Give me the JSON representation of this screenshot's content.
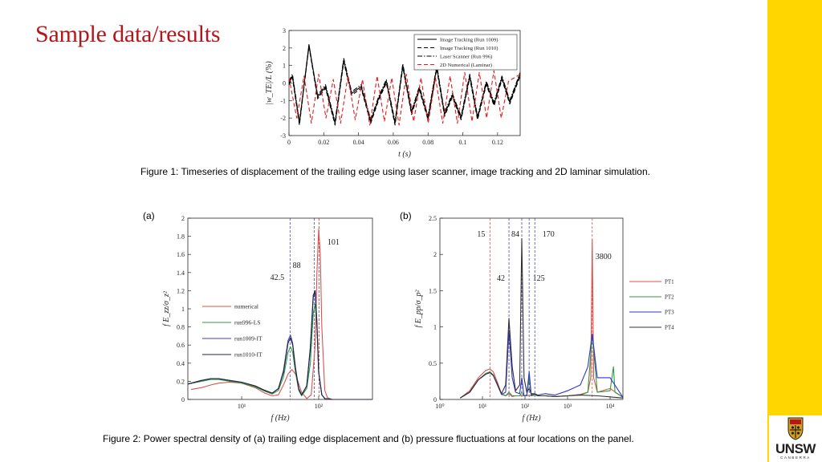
{
  "slide": {
    "title": "Sample data/results",
    "caption1": "Figure 1: Timeseries of displacement of the trailing edge using laser scanner, image tracking and 2D laminar simulation.",
    "caption2": "Figure 2: Power spectral density of (a) trailing edge displacement and (b) pressure fluctuations at four locations on the panel.",
    "panel_a": "(a)",
    "panel_b": "(b)",
    "logo": {
      "main": "UNSW",
      "sub": "CANBERRA"
    }
  },
  "chart_data": [
    {
      "type": "line",
      "xlabel": "t (s)",
      "ylabel": "|w_TE|/L (%)",
      "xlim": [
        0,
        0.133
      ],
      "ylim": [
        -3,
        3
      ],
      "xticks": [
        0,
        0.02,
        0.04,
        0.06,
        0.08,
        0.1,
        0.12
      ],
      "xtick_labels": [
        "0",
        "0.02",
        "0.04",
        "0.06",
        "0.08",
        "0.1",
        "0.12"
      ],
      "yticks": [
        -3,
        -2,
        -1,
        0,
        1,
        2,
        3
      ],
      "grid": false,
      "legend_position": "top-right",
      "legend_entries": [
        "Image Tracking (Run 1009)",
        "Image Tracking (Run 1010)",
        "Laser Scanner (Run 996)",
        "2D Numerical (Laminar)"
      ],
      "series": [
        {
          "name": "Image Tracking (Run 1009)",
          "color": "#000000",
          "style": "solid",
          "x": [
            0,
            0.002,
            0.006,
            0.0115,
            0.0165,
            0.021,
            0.0265,
            0.0315,
            0.036,
            0.0415,
            0.047,
            0.0515,
            0.056,
            0.061,
            0.0655,
            0.0705,
            0.075,
            0.08,
            0.085,
            0.0895,
            0.094,
            0.099,
            0.104,
            0.1085,
            0.1135,
            0.118,
            0.1225,
            0.127,
            0.133
          ],
          "y": [
            0,
            0.4,
            -2.3,
            2.2,
            -0.8,
            -0.2,
            -2.3,
            1.3,
            -0.6,
            -0.2,
            -2.2,
            -0.9,
            0.1,
            -2.3,
            1.0,
            -1.7,
            -0.3,
            -2.0,
            0.9,
            -1.8,
            -0.7,
            -2.0,
            0.4,
            -2.0,
            0.0,
            -1.2,
            0.3,
            -1.1,
            0.5
          ]
        },
        {
          "name": "Image Tracking (Run 1010)",
          "color": "#000000",
          "style": "dashed",
          "x": [
            0,
            0.002,
            0.006,
            0.0115,
            0.0165,
            0.021,
            0.0265,
            0.0315,
            0.036,
            0.0415,
            0.047,
            0.0515,
            0.056,
            0.061,
            0.0655,
            0.0705,
            0.075,
            0.08,
            0.085,
            0.0895,
            0.094,
            0.099,
            0.104,
            0.1085,
            0.1135,
            0.118,
            0.1225,
            0.127,
            0.133
          ],
          "y": [
            -0.1,
            0.3,
            -2.4,
            2.1,
            -0.9,
            -0.3,
            -2.4,
            1.2,
            -0.7,
            -0.3,
            -2.3,
            -1.0,
            0.0,
            -2.4,
            0.9,
            -1.8,
            -0.4,
            -2.1,
            0.8,
            -1.9,
            -0.8,
            -2.1,
            0.3,
            -2.1,
            -0.1,
            -1.3,
            0.2,
            -1.2,
            0.4
          ]
        },
        {
          "name": "Laser Scanner (Run 996)",
          "color": "#000000",
          "style": "dash-dot",
          "x": [
            0,
            0.002,
            0.006,
            0.0115,
            0.0165,
            0.021,
            0.0265,
            0.0315,
            0.036,
            0.0415,
            0.047,
            0.0515,
            0.056,
            0.061,
            0.0655,
            0.0705,
            0.075,
            0.08,
            0.085,
            0.0895,
            0.094,
            0.099,
            0.104,
            0.1085,
            0.1135,
            0.118,
            0.1225,
            0.127,
            0.133
          ],
          "y": [
            0.1,
            0.5,
            -2.2,
            2.1,
            -0.7,
            -0.1,
            -2.2,
            1.4,
            -0.5,
            -0.1,
            -2.1,
            -0.8,
            0.2,
            -2.2,
            1.1,
            -1.6,
            -0.2,
            -1.9,
            1.0,
            -1.7,
            -0.6,
            -1.9,
            0.5,
            -1.9,
            0.1,
            -1.1,
            0.4,
            -1.0,
            0.6
          ]
        },
        {
          "name": "2D Numerical (Laminar)",
          "color": "#e41a1c",
          "style": "dashed",
          "x": [
            0,
            0.0045,
            0.0087,
            0.0129,
            0.0171,
            0.0213,
            0.0255,
            0.0297,
            0.0339,
            0.0381,
            0.0423,
            0.0465,
            0.0507,
            0.0549,
            0.0591,
            0.0633,
            0.0675,
            0.0717,
            0.0759,
            0.0801,
            0.0843,
            0.0885,
            0.0927,
            0.0969,
            0.1011,
            0.1053,
            0.1095,
            0.1137,
            0.1179,
            0.1221,
            0.1263,
            0.133
          ],
          "y": [
            0.3,
            -2.0,
            0.4,
            -2.3,
            0.5,
            -2.0,
            0.2,
            -2.3,
            0.4,
            -2.1,
            0.2,
            -2.4,
            0.4,
            -2.2,
            0.3,
            -2.4,
            0.5,
            -2.2,
            0.3,
            -2.3,
            0.3,
            -2.3,
            0.4,
            -2.3,
            0.6,
            -2.2,
            0.6,
            -2.0,
            0.7,
            -2.0,
            0.1,
            0.5
          ]
        }
      ]
    },
    {
      "type": "line",
      "xscale": "log",
      "xlabel": "f (Hz)",
      "ylabel": "f E_zz/σ_z²",
      "xlim": [
        2,
        500
      ],
      "ylim": [
        0,
        2
      ],
      "xticks": [
        10,
        100
      ],
      "xtick_labels": [
        "10¹",
        "10²"
      ],
      "yticks": [
        0,
        0.2,
        0.4,
        0.6,
        0.8,
        1,
        1.2,
        1.4,
        1.6,
        1.8,
        2
      ],
      "grid": false,
      "legend_position": "lower-left",
      "legend_entries": [
        "numerical",
        "run996-LS",
        "run1009-IT",
        "run1010-IT"
      ],
      "vlines": [
        {
          "x": 42.5,
          "label": "42.5",
          "color": "#4a4aa8"
        },
        {
          "x": 88,
          "label": "88",
          "color": "#4a4aa8"
        },
        {
          "x": 101,
          "label": "101",
          "color": "#cc3333"
        }
      ],
      "series": [
        {
          "name": "numerical",
          "color": "#d9534f",
          "x": [
            2.2,
            3,
            4,
            5,
            7,
            10,
            15,
            20,
            25,
            30,
            35,
            40,
            45,
            50,
            60,
            70,
            80,
            90,
            95,
            100,
            105,
            110,
            120,
            130,
            150,
            200,
            300,
            500
          ],
          "y": [
            0.11,
            0.13,
            0.16,
            0.18,
            0.19,
            0.18,
            0.13,
            0.07,
            0.04,
            0.05,
            0.16,
            0.28,
            0.33,
            0.28,
            0.08,
            0.01,
            0.05,
            0.6,
            1.4,
            1.88,
            1.6,
            0.8,
            0.1,
            0.02,
            0,
            0,
            0,
            0
          ]
        },
        {
          "name": "run996-LS",
          "color": "#2e9a3c",
          "x": [
            2,
            3,
            4,
            5,
            7,
            10,
            15,
            20,
            25,
            30,
            35,
            40,
            43,
            46,
            50,
            55,
            60,
            70,
            78,
            85,
            90,
            95,
            100,
            110,
            120,
            150,
            200,
            300,
            500
          ],
          "y": [
            0.17,
            0.2,
            0.22,
            0.22,
            0.2,
            0.18,
            0.14,
            0.09,
            0.06,
            0.1,
            0.25,
            0.52,
            0.58,
            0.52,
            0.3,
            0.1,
            0.04,
            0.12,
            0.4,
            0.95,
            1.05,
            0.8,
            0.3,
            0.05,
            0.01,
            0,
            0,
            0,
            0
          ]
        },
        {
          "name": "run1009-IT",
          "color": "#4040c0",
          "x": [
            2,
            3,
            4,
            5,
            7,
            10,
            15,
            20,
            25,
            30,
            35,
            40,
            43,
            46,
            50,
            55,
            60,
            70,
            78,
            85,
            90,
            95,
            100,
            110,
            120,
            150,
            200,
            300,
            500
          ],
          "y": [
            0.17,
            0.21,
            0.23,
            0.23,
            0.21,
            0.19,
            0.15,
            0.1,
            0.07,
            0.12,
            0.32,
            0.65,
            0.71,
            0.62,
            0.35,
            0.12,
            0.05,
            0.15,
            0.55,
            1.12,
            1.18,
            0.85,
            0.3,
            0.05,
            0.01,
            0,
            0,
            0,
            0
          ]
        },
        {
          "name": "run1010-IT",
          "color": "#222244",
          "x": [
            2,
            3,
            4,
            5,
            7,
            10,
            15,
            20,
            25,
            30,
            35,
            40,
            43,
            46,
            50,
            55,
            60,
            70,
            78,
            85,
            90,
            95,
            100,
            110,
            120,
            150,
            200,
            300,
            500
          ],
          "y": [
            0.17,
            0.21,
            0.23,
            0.23,
            0.21,
            0.19,
            0.15,
            0.1,
            0.07,
            0.12,
            0.3,
            0.62,
            0.68,
            0.6,
            0.34,
            0.12,
            0.05,
            0.15,
            0.58,
            1.15,
            1.2,
            0.85,
            0.3,
            0.05,
            0.01,
            0,
            0,
            0,
            0
          ]
        }
      ]
    },
    {
      "type": "line",
      "xscale": "log",
      "xlabel": "f (Hz)",
      "ylabel": "f E_pp/σ_p²",
      "xlim": [
        1,
        20000
      ],
      "ylim": [
        0,
        2.5
      ],
      "xticks": [
        1,
        10,
        100,
        1000,
        10000
      ],
      "xtick_labels": [
        "10⁰",
        "10¹",
        "10²",
        "10³",
        "10⁴"
      ],
      "yticks": [
        0,
        0.5,
        1,
        1.5,
        2,
        2.5
      ],
      "grid": false,
      "legend_position": "right",
      "legend_entries": [
        "PT1",
        "PT2",
        "PT3",
        "PT4"
      ],
      "vlines": [
        {
          "x": 15,
          "label": "15",
          "color": "#d9534f"
        },
        {
          "x": 42,
          "label": "42",
          "color": "#4a4aa8"
        },
        {
          "x": 84,
          "label": "84",
          "color": "#4a4aa8"
        },
        {
          "x": 125,
          "label": "125",
          "color": "#4a4aa8"
        },
        {
          "x": 170,
          "label": "170",
          "color": "#4a4aa8"
        },
        {
          "x": 3800,
          "label": "3800",
          "color": "#d9534f"
        }
      ],
      "series": [
        {
          "name": "PT1",
          "color": "#d9534f",
          "x": [
            3,
            5,
            8,
            12,
            15,
            18,
            22,
            28,
            35,
            42,
            50,
            60,
            75,
            84,
            95,
            110,
            125,
            140,
            170,
            200,
            300,
            500,
            1000,
            2000,
            3000,
            3500,
            3800,
            4100,
            5000,
            10000,
            20000
          ],
          "y": [
            0.02,
            0.12,
            0.3,
            0.4,
            0.42,
            0.38,
            0.25,
            0.08,
            0.05,
            0.08,
            0.04,
            0.05,
            0.05,
            0.06,
            0.05,
            0.05,
            0.06,
            0.05,
            0.07,
            0.05,
            0.05,
            0.04,
            0.05,
            0.07,
            0.1,
            0.3,
            2.2,
            0.3,
            0.1,
            0.15,
            0.03
          ]
        },
        {
          "name": "PT2",
          "color": "#2e9a3c",
          "x": [
            3,
            5,
            8,
            12,
            15,
            18,
            22,
            28,
            35,
            42,
            50,
            60,
            75,
            84,
            95,
            110,
            125,
            140,
            170,
            200,
            300,
            500,
            1000,
            2000,
            3000,
            3800,
            5000,
            10000,
            12000,
            13000,
            20000
          ],
          "y": [
            0.02,
            0.1,
            0.27,
            0.36,
            0.38,
            0.34,
            0.22,
            0.07,
            0.05,
            0.1,
            0.05,
            0.05,
            0.05,
            0.1,
            0.05,
            0.05,
            0.3,
            0.05,
            0.06,
            0.05,
            0.05,
            0.04,
            0.05,
            0.06,
            0.1,
            0.9,
            0.1,
            0.12,
            0.45,
            0.1,
            0.03
          ]
        },
        {
          "name": "PT3",
          "color": "#3333cc",
          "x": [
            3,
            5,
            8,
            12,
            15,
            18,
            22,
            28,
            35,
            42,
            50,
            60,
            75,
            84,
            95,
            110,
            125,
            140,
            170,
            200,
            300,
            500,
            1000,
            2000,
            3000,
            3800,
            5000,
            10000,
            20000
          ],
          "y": [
            0.02,
            0.1,
            0.27,
            0.35,
            0.37,
            0.33,
            0.21,
            0.07,
            0.1,
            0.95,
            0.3,
            0.1,
            0.08,
            0.3,
            0.05,
            0.06,
            0.38,
            0.06,
            0.08,
            0.06,
            0.08,
            0.06,
            0.12,
            0.2,
            0.45,
            0.9,
            0.3,
            0.3,
            0.03
          ]
        },
        {
          "name": "PT4",
          "color": "#333333",
          "x": [
            3,
            5,
            8,
            12,
            15,
            18,
            22,
            28,
            35,
            42,
            50,
            60,
            75,
            84,
            95,
            110,
            125,
            140,
            170,
            200,
            300,
            500,
            1000,
            2000,
            5000,
            20000
          ],
          "y": [
            0.02,
            0.1,
            0.27,
            0.35,
            0.37,
            0.33,
            0.22,
            0.08,
            0.2,
            1.12,
            0.45,
            0.12,
            0.2,
            2.22,
            0.3,
            0.1,
            0.15,
            0.08,
            0.08,
            0.05,
            0.05,
            0.04,
            0.05,
            0.06,
            0.05,
            0.02
          ]
        }
      ]
    }
  ]
}
